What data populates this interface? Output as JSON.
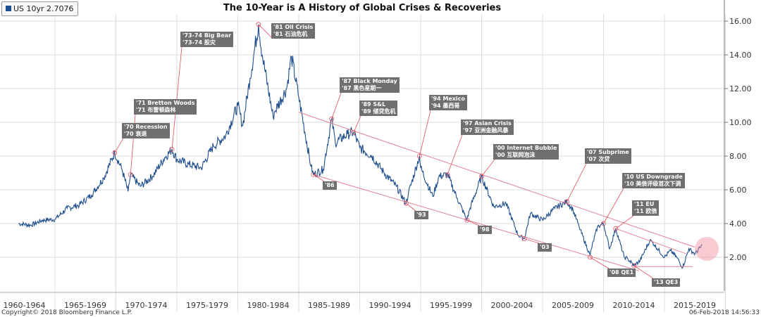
{
  "legend": {
    "label": "US 10yr 2.7076",
    "color": "#1f4e8c"
  },
  "footer": {
    "copyright": "Copyright© 2018 Bloomberg Finance L.P.",
    "timestamp": "06-Feb-2018 14:56:33"
  },
  "chart_data": {
    "type": "line",
    "title": "The 10-Year is A History of Global Crises & Recoveries",
    "xlabel": "",
    "ylabel": "",
    "ylim": [
      0,
      17
    ],
    "y_ticks": [
      "2.00",
      "4.00",
      "6.00",
      "8.00",
      "10.00",
      "12.00",
      "14.00",
      "16.00"
    ],
    "x_tick_labels": [
      "1960-1964",
      "1965-1969",
      "1970-1974",
      "1975-1979",
      "1980-1984",
      "1985-1989",
      "1990-1994",
      "1995-1999",
      "2000-2004",
      "2005-2009",
      "2010-2014",
      "2015-2019"
    ],
    "grid": true,
    "series": [
      {
        "name": "US 10yr",
        "color": "#1f4e8c",
        "points": [
          [
            1962,
            4.0
          ],
          [
            1963,
            3.9
          ],
          [
            1964,
            4.2
          ],
          [
            1965,
            4.25
          ],
          [
            1966,
            4.9
          ],
          [
            1967,
            5.1
          ],
          [
            1968,
            5.7
          ],
          [
            1969,
            6.7
          ],
          [
            1969.9,
            8.2
          ],
          [
            1970.5,
            7.2
          ],
          [
            1971,
            5.9
          ],
          [
            1971.2,
            6.9
          ],
          [
            1972,
            6.2
          ],
          [
            1973,
            6.8
          ],
          [
            1974,
            7.9
          ],
          [
            1974.6,
            8.4
          ],
          [
            1975,
            7.8
          ],
          [
            1976,
            7.5
          ],
          [
            1977,
            7.3
          ],
          [
            1978,
            8.6
          ],
          [
            1979,
            9.2
          ],
          [
            1980,
            11.0
          ],
          [
            1980.4,
            9.8
          ],
          [
            1981,
            12.6
          ],
          [
            1981.7,
            15.8
          ],
          [
            1982,
            14.0
          ],
          [
            1982.9,
            10.3
          ],
          [
            1983,
            10.6
          ],
          [
            1984,
            12.0
          ],
          [
            1984.4,
            13.9
          ],
          [
            1985,
            11.5
          ],
          [
            1986,
            7.4
          ],
          [
            1986.2,
            6.9
          ],
          [
            1987,
            7.2
          ],
          [
            1987.7,
            10.2
          ],
          [
            1988,
            8.8
          ],
          [
            1989,
            9.3
          ],
          [
            1989.5,
            9.4
          ],
          [
            1990,
            8.5
          ],
          [
            1991,
            8.0
          ],
          [
            1992,
            7.0
          ],
          [
            1993,
            6.2
          ],
          [
            1993.8,
            5.2
          ],
          [
            1994,
            5.8
          ],
          [
            1994.9,
            8.0
          ],
          [
            1995,
            7.3
          ],
          [
            1996,
            5.6
          ],
          [
            1996.5,
            6.8
          ],
          [
            1997.2,
            6.9
          ],
          [
            1998,
            5.5
          ],
          [
            1998.8,
            4.2
          ],
          [
            1999,
            4.8
          ],
          [
            2000,
            6.8
          ],
          [
            2001,
            5.0
          ],
          [
            2002,
            5.2
          ],
          [
            2003,
            3.3
          ],
          [
            2003.5,
            3.1
          ],
          [
            2004,
            4.6
          ],
          [
            2005,
            4.2
          ],
          [
            2006,
            4.9
          ],
          [
            2007,
            5.3
          ],
          [
            2007.5,
            4.8
          ],
          [
            2008,
            3.8
          ],
          [
            2008.9,
            2.1
          ],
          [
            2009,
            2.5
          ],
          [
            2009.5,
            3.8
          ],
          [
            2010,
            4.0
          ],
          [
            2010.5,
            2.5
          ],
          [
            2011,
            3.7
          ],
          [
            2011.7,
            2.0
          ],
          [
            2012,
            1.9
          ],
          [
            2012.5,
            1.5
          ],
          [
            2013,
            1.8
          ],
          [
            2013.8,
            3.0
          ],
          [
            2014,
            2.9
          ],
          [
            2015,
            2.0
          ],
          [
            2015.5,
            2.4
          ],
          [
            2016,
            2.0
          ],
          [
            2016.5,
            1.4
          ],
          [
            2017,
            2.5
          ],
          [
            2017.5,
            2.2
          ],
          [
            2018.1,
            2.7076
          ]
        ]
      }
    ],
    "annotations": [
      {
        "lines": [
          "'70 Recession",
          "'70 衰退"
        ],
        "x": 1969.9,
        "y": 8.2
      },
      {
        "lines": [
          "'71 Bretton Woods",
          "'71 布雷顿森林"
        ],
        "x": 1971.2,
        "y": 6.9
      },
      {
        "lines": [
          "'73-74 Big Bear",
          "'73-74 股灾"
        ],
        "x": 1974.6,
        "y": 8.4
      },
      {
        "lines": [
          "'81 Oil Crisis",
          "'81 石油危机"
        ],
        "x": 1981.7,
        "y": 15.8
      },
      {
        "lines": [
          "'87 Black Monday",
          "'87 黑色星期一"
        ],
        "x": 1987.7,
        "y": 10.2
      },
      {
        "lines": [
          "'89 S&L",
          "'89 储贷危机"
        ],
        "x": 1989.5,
        "y": 9.4
      },
      {
        "lines": [
          "'94 Mexico",
          "'94 墨西哥"
        ],
        "x": 1994.9,
        "y": 8.0
      },
      {
        "lines": [
          "'97 Asian Crisis",
          "'97 亚洲金融风暴"
        ],
        "x": 1997.2,
        "y": 6.9
      },
      {
        "lines": [
          "'00 Internet Bubble",
          "'00 互联网泡沫"
        ],
        "x": 2000.0,
        "y": 6.8
      },
      {
        "lines": [
          "'07 Subprime",
          "'07 次贷"
        ],
        "x": 2007.0,
        "y": 5.3
      },
      {
        "lines": [
          "'10 US Downgrade",
          "'10 美债评级首次下调"
        ],
        "x": 2010.0,
        "y": 4.0
      },
      {
        "lines": [
          "'11 EU",
          "'11 欧债"
        ],
        "x": 2011.0,
        "y": 3.7
      },
      {
        "lines": [
          "'86"
        ],
        "x": 1986.2,
        "y": 6.9
      },
      {
        "lines": [
          "'93"
        ],
        "x": 1993.8,
        "y": 5.2
      },
      {
        "lines": [
          "'98"
        ],
        "x": 1998.8,
        "y": 4.2
      },
      {
        "lines": [
          "'03"
        ],
        "x": 2003.5,
        "y": 3.1
      },
      {
        "lines": [
          "'08 QE1"
        ],
        "x": 2008.9,
        "y": 2.0
      },
      {
        "lines": [
          "'13 QE3"
        ],
        "x": 2012.5,
        "y": 1.5
      }
    ],
    "trend_lines": [
      {
        "from": [
          1985.0,
          10.6
        ],
        "to": [
          2017.5,
          2.6
        ]
      },
      {
        "from": [
          1986.2,
          6.9
        ],
        "to": [
          2012.9,
          1.2
        ]
      },
      {
        "from": [
          2011.0,
          3.7
        ],
        "to": [
          2016.8,
          2.2
        ]
      },
      {
        "from": [
          2012.5,
          1.45
        ],
        "to": [
          2017.3,
          1.45
        ]
      }
    ],
    "highlight": {
      "x": 2017.9,
      "y": 2.5
    }
  }
}
